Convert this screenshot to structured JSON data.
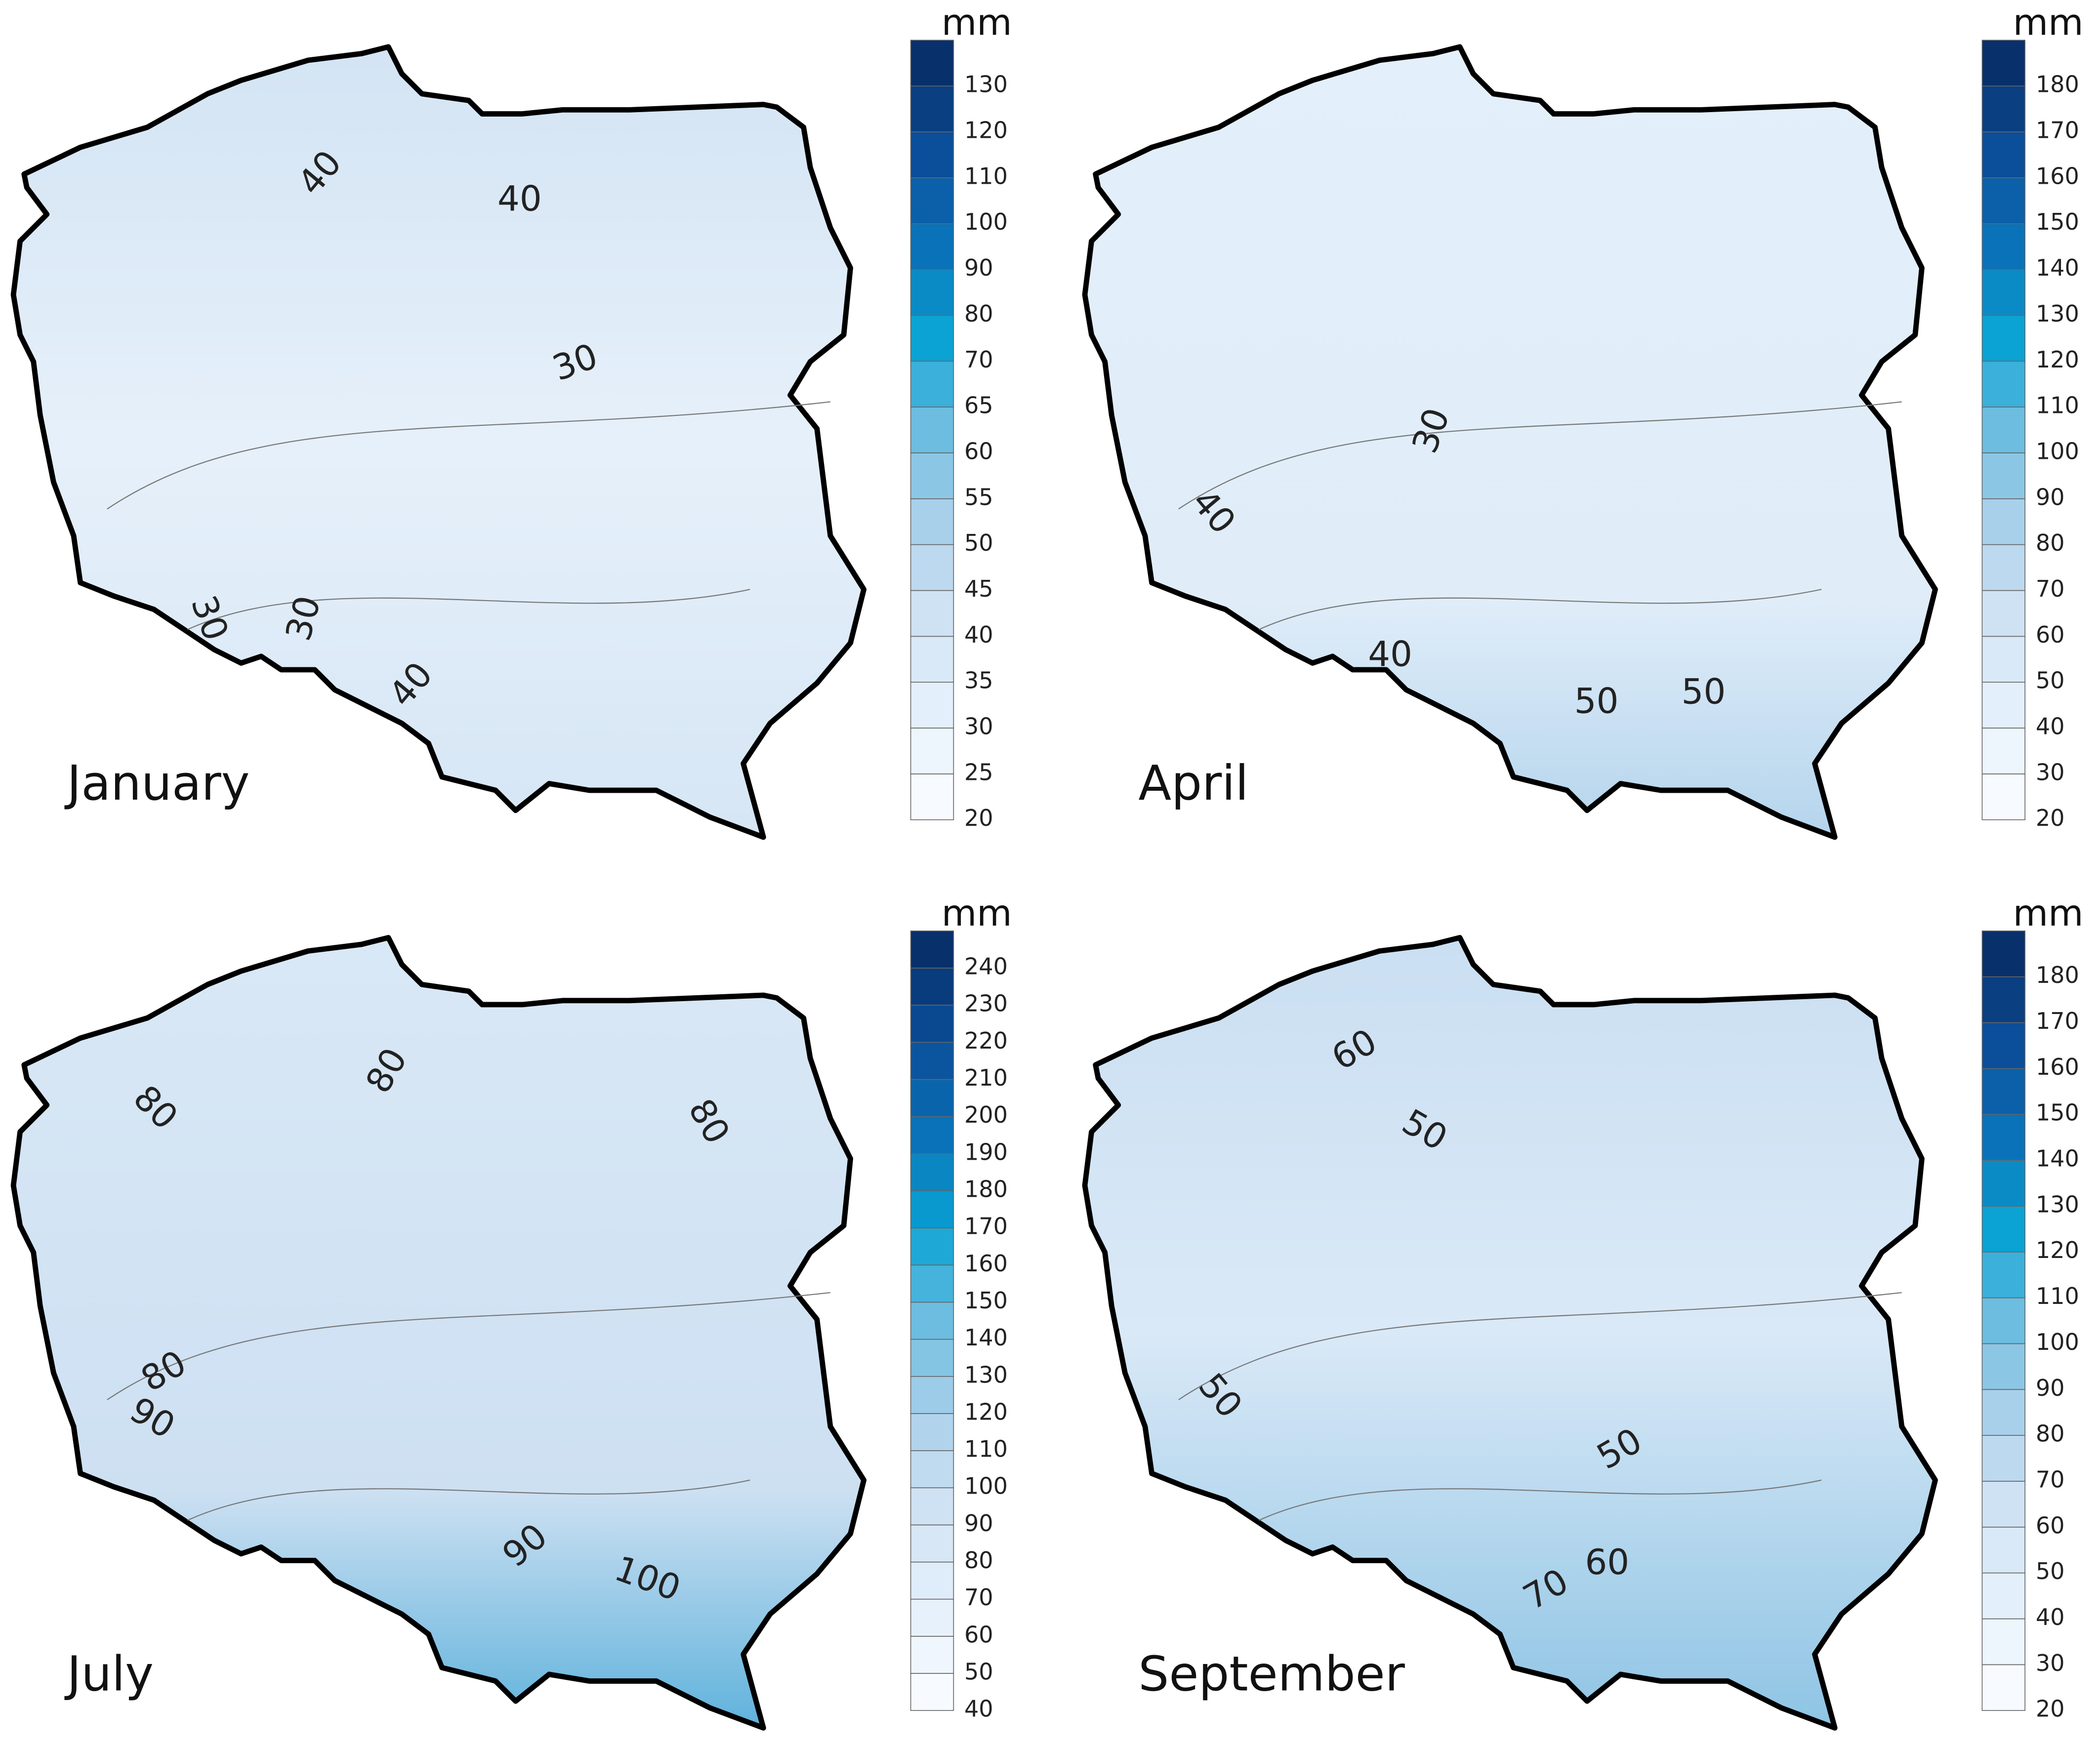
{
  "panels": [
    {
      "title": "January",
      "unit": "mm",
      "colorbar_labels": [
        20,
        25,
        30,
        35,
        40,
        45,
        50,
        55,
        60,
        65,
        70,
        80,
        90,
        100,
        110,
        120,
        130
      ],
      "contour_labels": [
        40,
        40,
        30,
        30,
        30,
        40
      ]
    },
    {
      "title": "April",
      "unit": "mm",
      "colorbar_labels": [
        20,
        30,
        40,
        50,
        60,
        70,
        80,
        90,
        100,
        110,
        120,
        130,
        140,
        150,
        160,
        170,
        180
      ],
      "contour_labels": [
        30,
        40,
        40,
        50,
        50
      ]
    },
    {
      "title": "July",
      "unit": "mm",
      "colorbar_labels": [
        40,
        50,
        60,
        70,
        80,
        90,
        100,
        110,
        120,
        130,
        140,
        150,
        160,
        170,
        180,
        190,
        200,
        210,
        220,
        230,
        240
      ],
      "contour_labels": [
        80,
        80,
        80,
        80,
        90,
        90,
        100
      ]
    },
    {
      "title": "September",
      "unit": "mm",
      "colorbar_labels": [
        20,
        30,
        40,
        50,
        60,
        70,
        80,
        90,
        100,
        110,
        120,
        130,
        140,
        150,
        160,
        170,
        180
      ],
      "contour_labels": [
        60,
        50,
        50,
        50,
        60,
        70
      ]
    }
  ]
}
